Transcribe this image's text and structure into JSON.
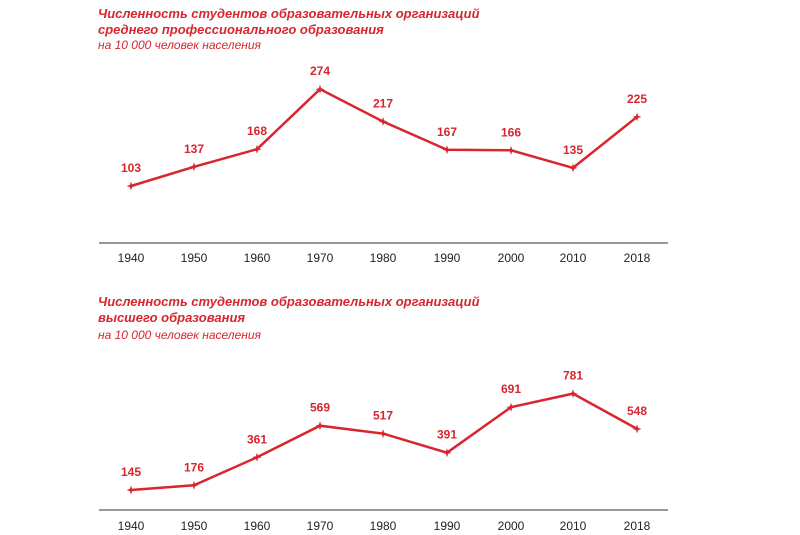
{
  "chart_data": [
    {
      "type": "line",
      "title": "Численность студентов образовательных организаций",
      "title_line2": "среднего профессионального образования",
      "subtitle": "на 10 000 человек населения",
      "categories": [
        "1940",
        "1950",
        "1960",
        "1970",
        "1980",
        "1990",
        "2000",
        "2010",
        "2018"
      ],
      "values": [
        103,
        137,
        168,
        274,
        217,
        167,
        166,
        135,
        225
      ],
      "color": "#d8262e",
      "grid": false,
      "legend": false
    },
    {
      "type": "line",
      "title": "Численность студентов образовательных организаций",
      "title_line2": "высшего образования",
      "subtitle": "на 10 000 человек населения",
      "categories": [
        "1940",
        "1950",
        "1960",
        "1970",
        "1980",
        "1990",
        "2000",
        "2010",
        "2018"
      ],
      "values": [
        145,
        176,
        361,
        569,
        517,
        391,
        691,
        781,
        548
      ],
      "color": "#d8262e",
      "grid": false,
      "legend": false
    }
  ]
}
